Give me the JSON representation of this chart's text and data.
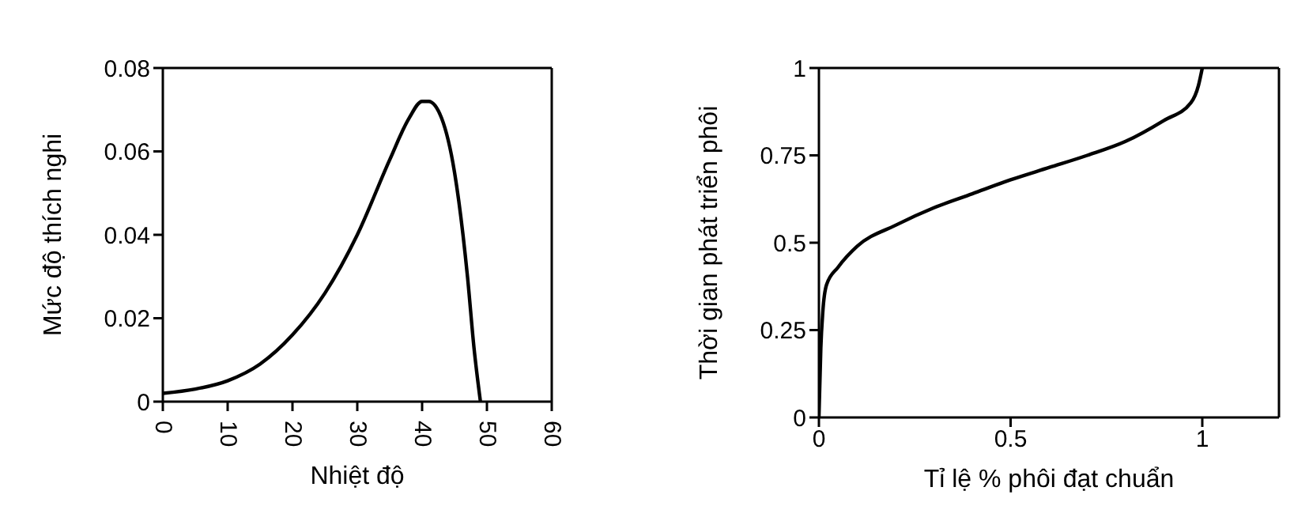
{
  "chart_data": [
    {
      "type": "line",
      "xlabel": "Nhiệt độ",
      "ylabel": "Mức độ thích nghi",
      "xlim": [
        0,
        60
      ],
      "xticks": [
        0,
        10,
        20,
        30,
        40,
        50,
        60
      ],
      "ylim": [
        0,
        0.08
      ],
      "yticks": [
        0,
        0.02,
        0.04,
        0.06,
        0.08
      ],
      "grid": false,
      "legend": false,
      "marker": "none",
      "line_style": "solid",
      "x": [
        0,
        5,
        10,
        15,
        20,
        25,
        30,
        35,
        38,
        40,
        41,
        43,
        45,
        47,
        48,
        49
      ],
      "series": [
        {
          "color": "#000000",
          "values": [
            0.002,
            0.003,
            0.005,
            0.009,
            0.016,
            0.026,
            0.04,
            0.058,
            0.068,
            0.072,
            0.072,
            0.068,
            0.055,
            0.03,
            0.013,
            0
          ]
        }
      ]
    },
    {
      "type": "line",
      "xlabel": "Tỉ lệ % phôi đạt chuẩn",
      "ylabel": "Thời gian phát triển phôi",
      "xlim": [
        0,
        1.2
      ],
      "xticks": [
        0,
        0.5,
        1
      ],
      "ylim": [
        0,
        1
      ],
      "yticks": [
        0,
        0.25,
        0.5,
        0.75,
        1
      ],
      "grid": false,
      "legend": false,
      "marker": "none",
      "line_style": "solid",
      "x": [
        0,
        0.005,
        0.01,
        0.02,
        0.05,
        0.1,
        0.2,
        0.3,
        0.4,
        0.5,
        0.6,
        0.7,
        0.8,
        0.9,
        0.97,
        0.99,
        1
      ],
      "series": [
        {
          "color": "#000000",
          "values": [
            0,
            0.2,
            0.3,
            0.38,
            0.43,
            0.49,
            0.55,
            0.6,
            0.64,
            0.68,
            0.715,
            0.75,
            0.79,
            0.85,
            0.9,
            0.95,
            1
          ]
        }
      ]
    }
  ]
}
